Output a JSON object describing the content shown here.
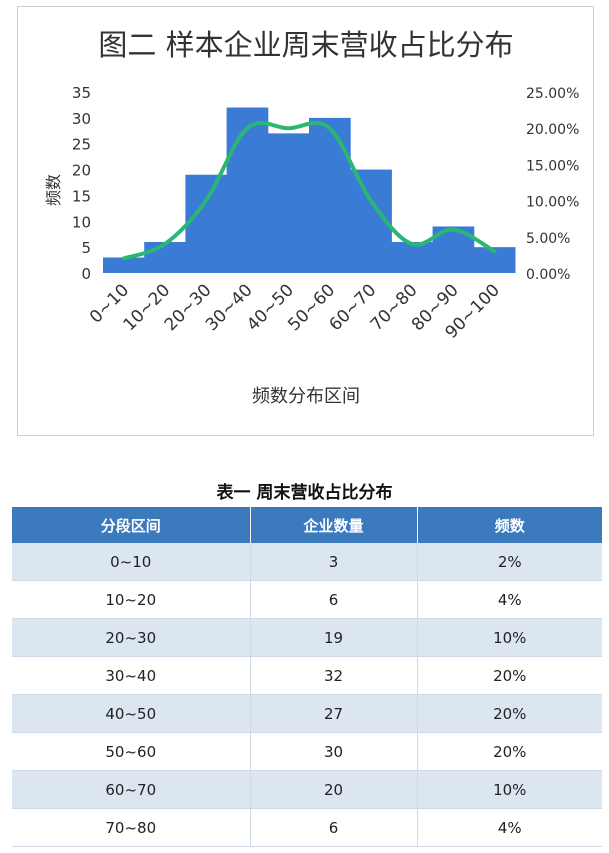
{
  "chart_data": {
    "type": "bar",
    "title": "图二  样本企业周末营收占比分布",
    "xlabel": "频数分布区间",
    "ylabel": "频数",
    "categories": [
      "0~10",
      "10~20",
      "20~30",
      "30~40",
      "40~50",
      "50~60",
      "60~70",
      "70~80",
      "80~90",
      "90~100"
    ],
    "series": [
      {
        "values": [
          3,
          6,
          19,
          32,
          27,
          30,
          20,
          6,
          9,
          5
        ],
        "axis": "left",
        "render": "bar",
        "color": "#3a7bd5"
      },
      {
        "values": [
          0.02,
          0.04,
          0.1,
          0.2,
          0.2,
          0.2,
          0.1,
          0.04,
          0.06,
          0.03
        ],
        "axis": "right",
        "render": "smooth-line",
        "color": "#2bb673"
      }
    ],
    "ylim": [
      0,
      35
    ],
    "yticks": [
      "0",
      "5",
      "10",
      "15",
      "20",
      "25",
      "30",
      "35"
    ],
    "y2lim": [
      0,
      0.25
    ],
    "y2ticks": [
      "0.00%",
      "5.00%",
      "10.00%",
      "15.00%",
      "20.00%",
      "25.00%"
    ],
    "grid": false,
    "legend": "none"
  },
  "table": {
    "title": "表一    周末营收占比分布",
    "headers": [
      "分段区间",
      "企业数量",
      "频数"
    ],
    "rows": [
      [
        "0~10",
        "3",
        "2%"
      ],
      [
        "10~20",
        "6",
        "4%"
      ],
      [
        "20~30",
        "19",
        "10%"
      ],
      [
        "30~40",
        "32",
        "20%"
      ],
      [
        "40~50",
        "27",
        "20%"
      ],
      [
        "50~60",
        "30",
        "20%"
      ],
      [
        "60~70",
        "20",
        "10%"
      ],
      [
        "70~80",
        "6",
        "4%"
      ]
    ]
  }
}
